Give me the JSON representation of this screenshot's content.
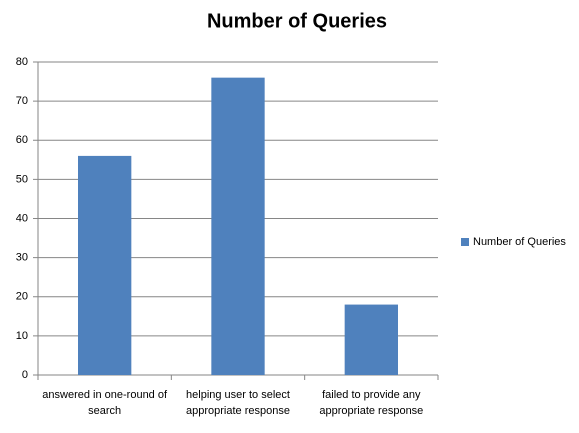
{
  "chart_data": {
    "type": "bar",
    "title": "Number of Queries",
    "categories": [
      "answered in one-round of search",
      "helping user to select appropriate response",
      "failed to provide any appropriate response"
    ],
    "series": [
      {
        "name": "Number of Queries",
        "color": "#4f81bd",
        "values": [
          56,
          76,
          18
        ]
      }
    ],
    "ylim": [
      0,
      80
    ],
    "yticks": [
      0,
      10,
      20,
      30,
      40,
      50,
      60,
      70,
      80
    ],
    "grid": true,
    "legend": "right"
  }
}
